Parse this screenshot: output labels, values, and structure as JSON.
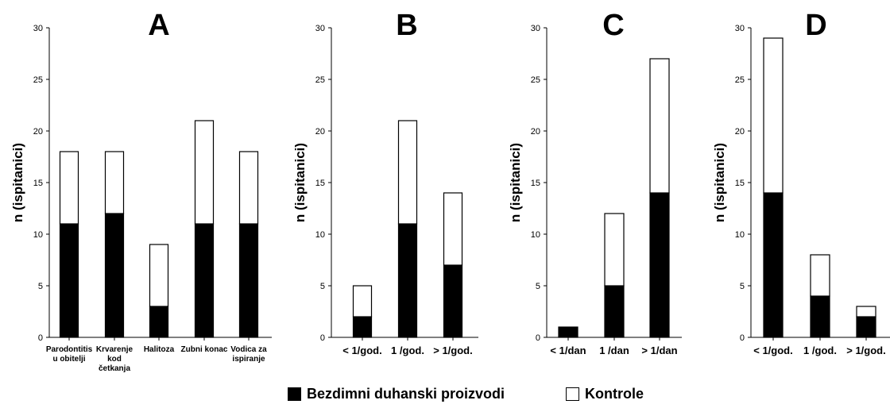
{
  "colors": {
    "bezdimni": "#000000",
    "kontrole": "#ffffff",
    "outline": "#000000"
  },
  "legend": {
    "items": [
      {
        "label": "Bezdimni duhanski proizvodi",
        "color": "#000000"
      },
      {
        "label": "Kontrole",
        "color": "#ffffff"
      }
    ]
  },
  "chart_data": [
    {
      "panel": "A",
      "type": "bar",
      "stacked": true,
      "ylabel": "n (ispitanici)",
      "ylim": [
        0,
        30
      ],
      "yticks": [
        "0",
        "5",
        "10",
        "15",
        "20",
        "25",
        "30"
      ],
      "categories": [
        [
          "Parodontitis",
          "u obitelji"
        ],
        [
          "Krvarenje",
          "kod",
          "četkanja"
        ],
        [
          "Halitoza"
        ],
        [
          "Zubni konac"
        ],
        [
          "Vodica za",
          "ispiranje"
        ]
      ],
      "series": [
        {
          "name": "Bezdimni duhanski proizvodi",
          "values": [
            11,
            12,
            3,
            11,
            11
          ]
        },
        {
          "name": "Kontrole",
          "values": [
            7,
            6,
            6,
            10,
            7
          ]
        }
      ]
    },
    {
      "panel": "B",
      "type": "bar",
      "stacked": true,
      "ylabel": "n (ispitanici)",
      "ylim": [
        0,
        30
      ],
      "yticks": [
        "0",
        "5",
        "10",
        "15",
        "20",
        "25",
        "30"
      ],
      "categories": [
        [
          "< 1/god."
        ],
        [
          "1 /god."
        ],
        [
          "> 1/god."
        ]
      ],
      "series": [
        {
          "name": "Bezdimni duhanski proizvodi",
          "values": [
            2,
            11,
            7
          ]
        },
        {
          "name": "Kontrole",
          "values": [
            3,
            10,
            7
          ]
        }
      ]
    },
    {
      "panel": "C",
      "type": "bar",
      "stacked": true,
      "ylabel": "n (ispitanici)",
      "ylim": [
        0,
        30
      ],
      "yticks": [
        "0",
        "5",
        "10",
        "15",
        "20",
        "25",
        "30"
      ],
      "categories": [
        [
          "< 1/dan"
        ],
        [
          "1 /dan"
        ],
        [
          "> 1/dan"
        ]
      ],
      "series": [
        {
          "name": "Bezdimni duhanski proizvodi",
          "values": [
            1,
            5,
            14
          ]
        },
        {
          "name": "Kontrole",
          "values": [
            0,
            7,
            13
          ]
        }
      ]
    },
    {
      "panel": "D",
      "type": "bar",
      "stacked": true,
      "ylabel": "n (ispitanici)",
      "ylim": [
        0,
        30
      ],
      "yticks": [
        "0",
        "5",
        "10",
        "15",
        "20",
        "25",
        "30"
      ],
      "categories": [
        [
          "< 1/god."
        ],
        [
          "1 /god."
        ],
        [
          "> 1/god."
        ]
      ],
      "series": [
        {
          "name": "Bezdimni duhanski proizvodi",
          "values": [
            14,
            4,
            2
          ]
        },
        {
          "name": "Kontrole",
          "values": [
            15,
            4,
            1
          ]
        }
      ]
    }
  ]
}
